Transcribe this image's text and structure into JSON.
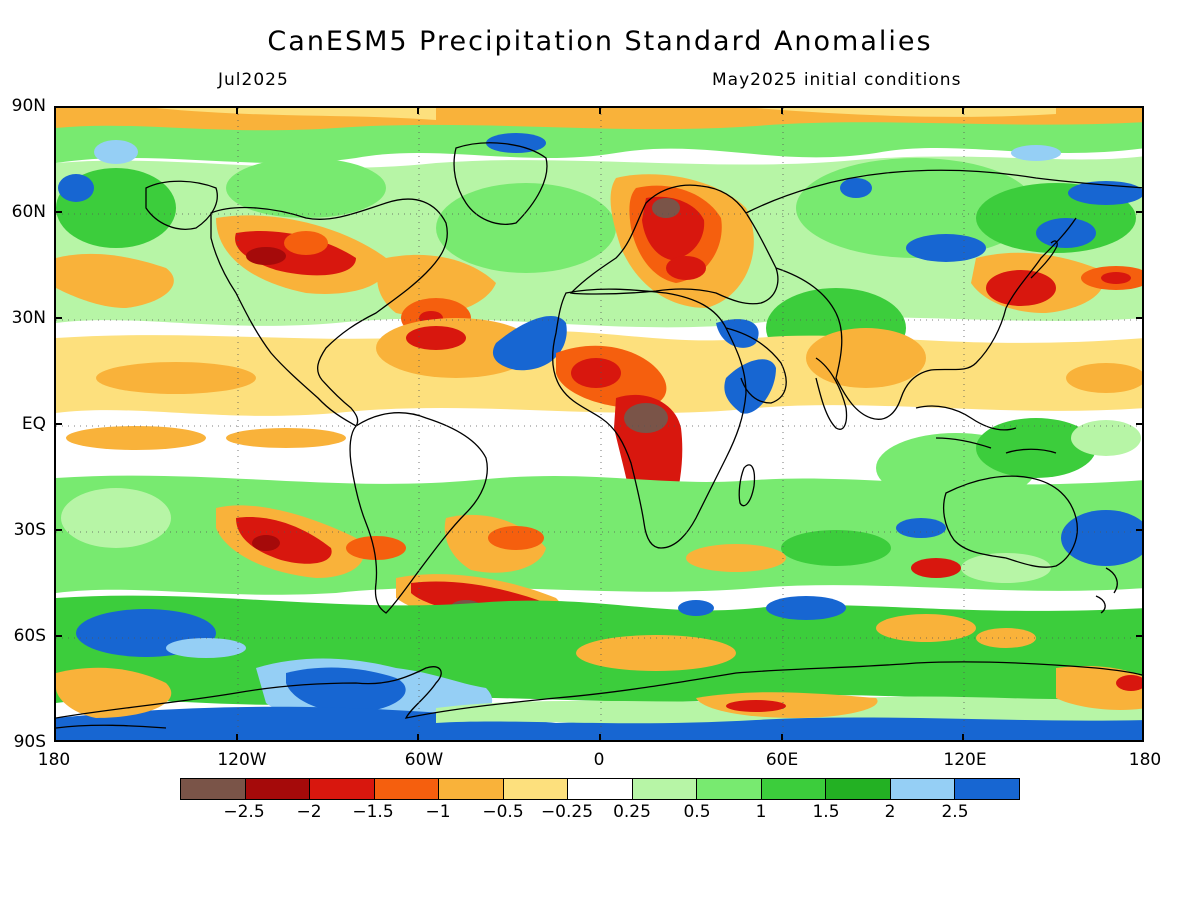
{
  "title": "CanESM5 Precipitation Standard Anomalies",
  "subtitle_left": "Jul2025",
  "subtitle_right": "May2025 initial conditions",
  "y_axis_labels": [
    "90N",
    "60N",
    "30N",
    "EQ",
    "30S",
    "60S",
    "90S"
  ],
  "x_axis_labels": [
    "180",
    "120W",
    "60W",
    "0",
    "60E",
    "120E",
    "180"
  ],
  "colorbar": {
    "colors": [
      "#7a5448",
      "#a50a0a",
      "#d8170e",
      "#f55f0e",
      "#f9b23a",
      "#fde07d",
      "#ffffff",
      "#b7f5a6",
      "#78ea70",
      "#3ccd3c",
      "#23b123",
      "#95cff5",
      "#1766d2"
    ],
    "labels": [
      "−2.5",
      "−2",
      "−1.5",
      "−1",
      "−0.5",
      "−0.25",
      "0.25",
      "0.5",
      "1",
      "1.5",
      "2",
      "2.5"
    ]
  },
  "map_colors": {
    "background": "#ffffff",
    "green_light": "#b7f5a6",
    "green": "#78ea70",
    "green_mid": "#3ccd3c",
    "green_dark": "#23b123",
    "blue_light": "#95cff5",
    "blue": "#1766d2",
    "yellow": "#fde07d",
    "orange_light": "#f9b23a",
    "orange": "#f55f0e",
    "red": "#d8170e",
    "dark_red": "#a50a0a",
    "brown": "#7a5448"
  }
}
